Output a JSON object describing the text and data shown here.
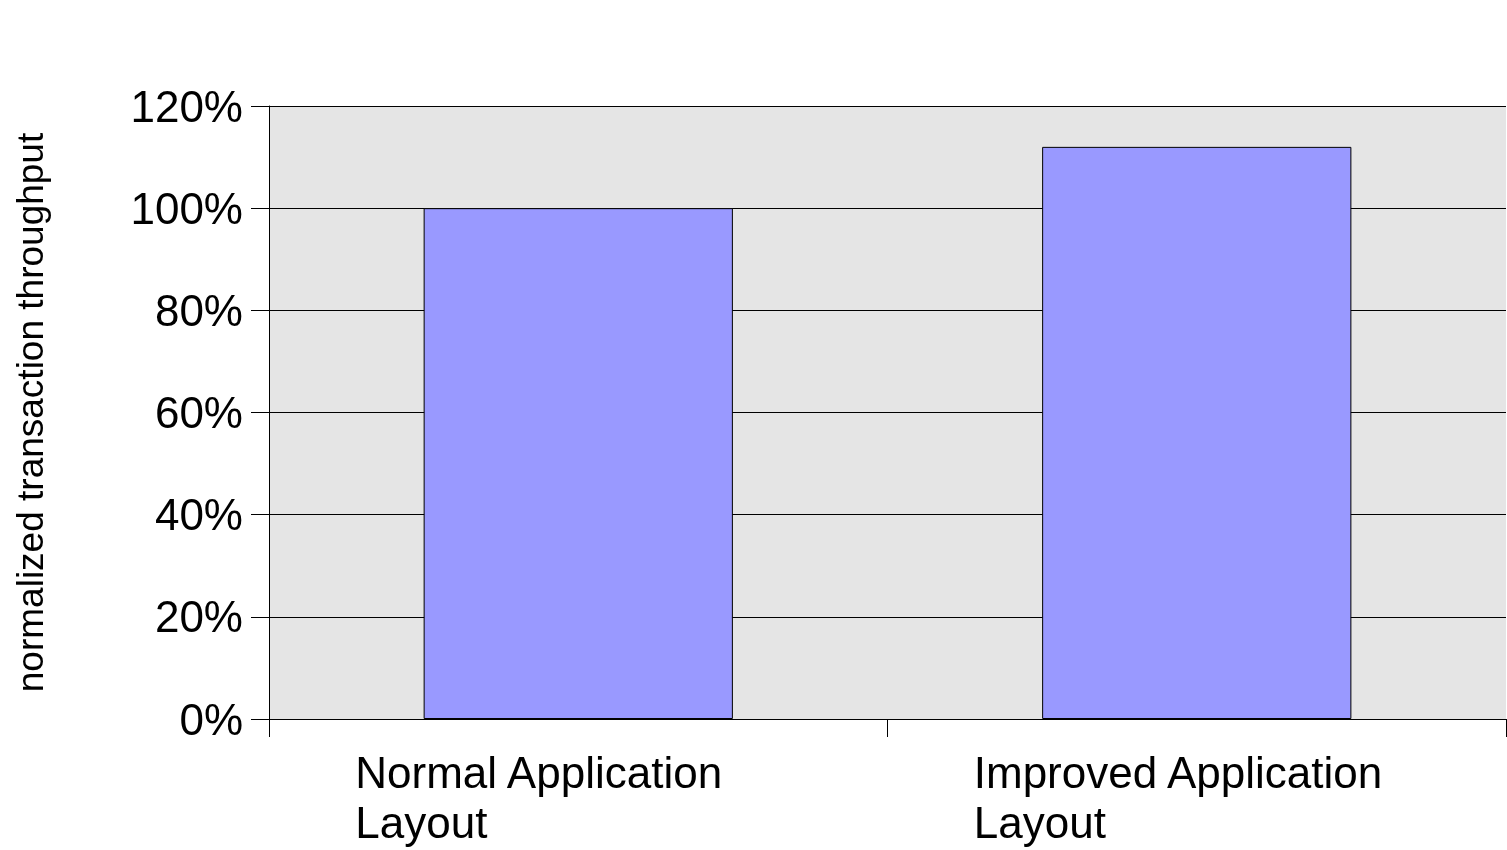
{
  "chart_data": {
    "type": "bar",
    "ylabel": "normalized transaction throughput",
    "categories": [
      "Normal Application Layout",
      "Improved Application Layout"
    ],
    "values": [
      100,
      112
    ],
    "color": "#9999ff",
    "ylim": [
      0,
      120
    ],
    "yticks": [
      {
        "value": 0,
        "label": "0%"
      },
      {
        "value": 20,
        "label": "20%"
      },
      {
        "value": 40,
        "label": "40%"
      },
      {
        "value": 60,
        "label": "60%"
      },
      {
        "value": 80,
        "label": "80%"
      },
      {
        "value": 100,
        "label": "100%"
      },
      {
        "value": 120,
        "label": "120%"
      }
    ],
    "grid": "y"
  }
}
